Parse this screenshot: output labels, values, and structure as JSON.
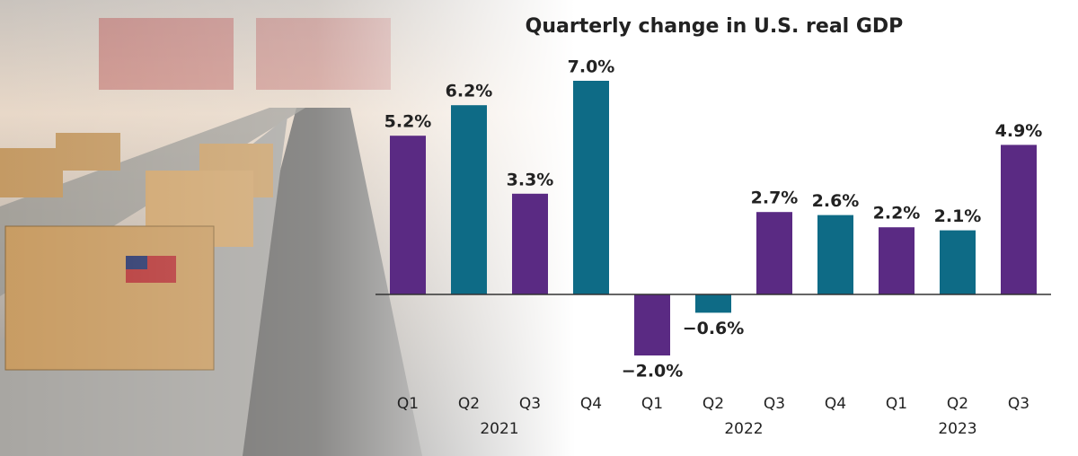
{
  "chart_data": {
    "type": "bar",
    "title": "Quarterly change in U.S. real GDP",
    "categories": [
      "Q1",
      "Q2",
      "Q3",
      "Q4",
      "Q1",
      "Q2",
      "Q3",
      "Q4",
      "Q1",
      "Q2",
      "Q3"
    ],
    "groups": [
      {
        "label": "2021",
        "count": 4
      },
      {
        "label": "2022",
        "count": 4
      },
      {
        "label": "2023",
        "count": 3
      }
    ],
    "values": [
      5.2,
      6.2,
      3.3,
      7.0,
      -2.0,
      -0.6,
      2.7,
      2.6,
      2.2,
      2.1,
      4.9
    ],
    "value_labels": [
      "5.2%",
      "6.2%",
      "3.3%",
      "7.0%",
      "−2.0%",
      "−0.6%",
      "2.7%",
      "2.6%",
      "2.2%",
      "2.1%",
      "4.9%"
    ],
    "colors": [
      "#5a2a83",
      "#0e6b86",
      "#5a2a83",
      "#0e6b86",
      "#5a2a83",
      "#0e6b86",
      "#5a2a83",
      "#0e6b86",
      "#5a2a83",
      "#0e6b86",
      "#5a2a83"
    ]
  }
}
